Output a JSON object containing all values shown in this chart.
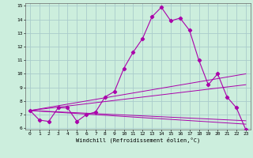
{
  "background_color": "#cceedd",
  "line_color": "#aa00aa",
  "grid_color": "#aacccc",
  "xlim": [
    -0.5,
    23.5
  ],
  "ylim": [
    5.9,
    15.2
  ],
  "xticks": [
    0,
    1,
    2,
    3,
    4,
    5,
    6,
    7,
    8,
    9,
    10,
    11,
    12,
    13,
    14,
    15,
    16,
    17,
    18,
    19,
    20,
    21,
    22,
    23
  ],
  "yticks": [
    6,
    7,
    8,
    9,
    10,
    11,
    12,
    13,
    14,
    15
  ],
  "xlabel": "Windchill (Refroidissement éolien,°C)",
  "main_x": [
    0,
    1,
    2,
    3,
    4,
    5,
    6,
    7,
    8,
    9,
    10,
    11,
    12,
    13,
    14,
    15,
    16,
    17,
    18,
    19,
    20,
    21,
    22,
    23
  ],
  "main_y": [
    7.3,
    6.6,
    6.5,
    7.5,
    7.5,
    6.5,
    7.0,
    7.2,
    8.3,
    8.7,
    10.4,
    11.6,
    12.6,
    14.2,
    14.9,
    13.9,
    14.1,
    13.2,
    11.0,
    9.2,
    10.0,
    8.3,
    7.5,
    5.9
  ],
  "trend_lines": [
    {
      "x": [
        0,
        23
      ],
      "y": [
        7.3,
        6.3
      ]
    },
    {
      "x": [
        0,
        23
      ],
      "y": [
        7.3,
        6.55
      ]
    },
    {
      "x": [
        0,
        23
      ],
      "y": [
        7.3,
        9.2
      ]
    },
    {
      "x": [
        0,
        23
      ],
      "y": [
        7.3,
        10.0
      ]
    }
  ]
}
